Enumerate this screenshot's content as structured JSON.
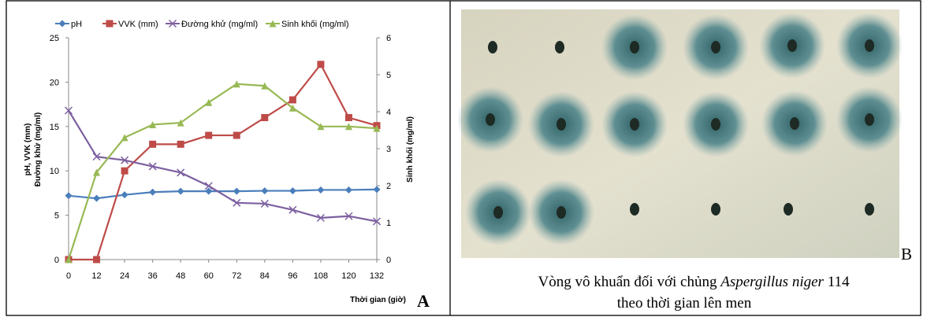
{
  "chart_data": {
    "type": "line",
    "y_label_lines": [
      "pH, VVK (mm)",
      "Đường khử (mg/ml)"
    ],
    "y2_label": "Sinh khối (mg/ml)",
    "x_label": "Thời gian (giờ)",
    "x": [
      0,
      12,
      24,
      36,
      48,
      60,
      72,
      84,
      96,
      108,
      120,
      132
    ],
    "xlim": [
      0,
      132
    ],
    "xticks": [
      0,
      12,
      24,
      36,
      48,
      60,
      72,
      84,
      96,
      108,
      120,
      132
    ],
    "ylim": [
      0,
      25
    ],
    "yticks": [
      0,
      5,
      10,
      15,
      20,
      25
    ],
    "y2lim": [
      0,
      6
    ],
    "y2ticks": [
      0,
      1,
      2,
      3,
      4,
      5,
      6
    ],
    "legend": "top",
    "series": [
      {
        "name": "pH",
        "color": "#4a7ebb",
        "marker": "diamond",
        "values": [
          7.2,
          6.9,
          7.3,
          7.6,
          7.7,
          7.7,
          7.7,
          7.75,
          7.75,
          7.85,
          7.85,
          7.9
        ]
      },
      {
        "name": "VVK (mm)",
        "color": "#be4b48",
        "marker": "square",
        "values": [
          0,
          0,
          10,
          13,
          13,
          14,
          14,
          16,
          18,
          22,
          16,
          15.1
        ]
      },
      {
        "name": "Đường khử (mg/ml)",
        "color": "#7d60a0",
        "marker": "cross",
        "values": [
          16.8,
          11.6,
          11.2,
          10.5,
          9.8,
          8.3,
          6.4,
          6.3,
          5.6,
          4.7,
          4.9,
          4.3
        ]
      },
      {
        "name": "Sinh khối (mg/ml)",
        "color": "#98b954",
        "marker": "triangle",
        "axis": "y2",
        "values": [
          0,
          2.36,
          3.3,
          3.65,
          3.7,
          4.25,
          4.75,
          4.7,
          4.1,
          3.6,
          3.6,
          3.55
        ]
      }
    ]
  },
  "panel_labels": [
    "A",
    "B"
  ],
  "caption": {
    "before": "Vòng vô khuẩn đối với chủng ",
    "species": "Aspergillus niger",
    "after": " 114",
    "line2": "theo thời gian lên men"
  }
}
